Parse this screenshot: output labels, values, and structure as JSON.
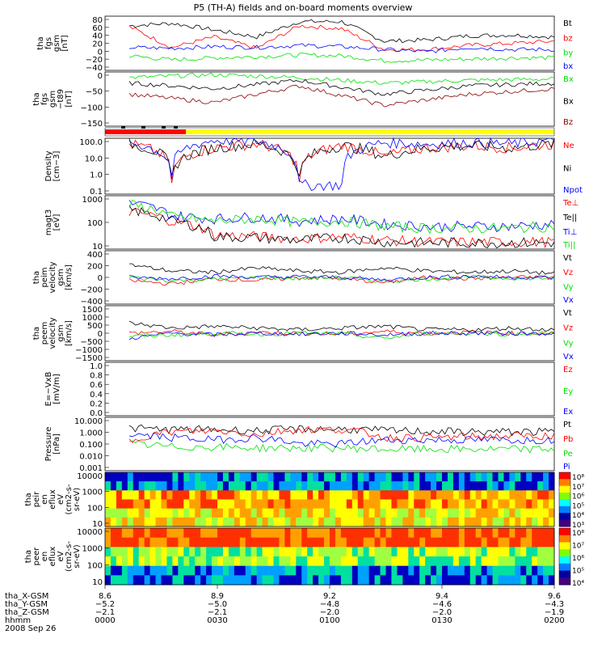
{
  "title": "P5 (TH-A) fields and on-board moments overview",
  "colors": {
    "black": "#000000",
    "red": "#ff0000",
    "green": "#00e000",
    "blue": "#0000ff",
    "yellow": "#ffff00",
    "darkred": "#8b0000"
  },
  "chart_data": [
    {
      "type": "line",
      "ylabel_lines": [
        "tha",
        "fgs",
        "gsm",
        "[nT]"
      ],
      "yticks": [
        "80",
        "60",
        "40",
        "20",
        "0",
        "−20",
        "−40"
      ],
      "ylim": [
        -45,
        85
      ],
      "series": [
        {
          "name": "Bt",
          "color": "#000000",
          "x": [
            0,
            0.1,
            0.2,
            0.3,
            0.4,
            0.5,
            0.6,
            0.7,
            0.8,
            0.9,
            1.0
          ],
          "values": [
            62,
            68,
            52,
            35,
            72,
            72,
            25,
            28,
            38,
            40,
            35
          ]
        },
        {
          "name": "bz",
          "color": "#ff0000",
          "x": [
            0,
            0.1,
            0.2,
            0.3,
            0.4,
            0.5,
            0.6,
            0.7,
            0.8,
            0.9,
            1.0
          ],
          "values": [
            60,
            10,
            35,
            8,
            62,
            55,
            5,
            5,
            15,
            20,
            25
          ]
        },
        {
          "name": "by",
          "color": "#00e000",
          "x": [
            0,
            0.1,
            0.2,
            0.3,
            0.4,
            0.5,
            0.6,
            0.7,
            0.8,
            0.9,
            1.0
          ],
          "values": [
            -10,
            -20,
            -15,
            -12,
            -8,
            -10,
            -22,
            -20,
            -18,
            -15,
            -15
          ]
        },
        {
          "name": "bx",
          "color": "#0000ff",
          "x": [
            0,
            0.1,
            0.2,
            0.3,
            0.4,
            0.5,
            0.6,
            0.7,
            0.8,
            0.9,
            1.0
          ],
          "values": [
            10,
            8,
            12,
            10,
            15,
            12,
            5,
            0,
            10,
            5,
            5
          ]
        }
      ]
    },
    {
      "type": "line",
      "ylabel_lines": [
        "tha",
        "fgs",
        "gsm",
        "−t89",
        "[nT]"
      ],
      "yticks": [
        "0",
        "−50",
        "−100",
        "−150"
      ],
      "ylim": [
        -175,
        20
      ],
      "series": [
        {
          "name": "Bx",
          "color": "#00e000",
          "x": [
            0,
            0.2,
            0.4,
            0.6,
            0.8,
            1.0
          ],
          "values": [
            0,
            10,
            0,
            -20,
            -10,
            -5
          ]
        },
        {
          "name": "Bx",
          "color": "#000000",
          "x": [
            0,
            0.2,
            0.4,
            0.6,
            0.8,
            1.0
          ],
          "values": [
            -20,
            -40,
            -10,
            -60,
            -30,
            -20
          ]
        },
        {
          "name": "Bz",
          "color": "#8b0000",
          "x": [
            0,
            0.2,
            0.4,
            0.6,
            0.8,
            1.0
          ],
          "values": [
            -60,
            -90,
            -30,
            -100,
            -60,
            -40
          ]
        }
      ]
    },
    {
      "type": "line",
      "log": true,
      "ylabel_lines": [
        "Density",
        "[cm−3]"
      ],
      "yticks": [
        "100.0",
        "10.0",
        "1.0",
        "0.1"
      ],
      "ylim": [
        0.1,
        100
      ],
      "series": [
        {
          "name": "Ne",
          "color": "#ff0000",
          "x": [
            0,
            0.1,
            0.2,
            0.3,
            0.4,
            0.5,
            0.6,
            0.7,
            0.8,
            0.9,
            1.0
          ],
          "values": [
            50,
            0.5,
            30,
            50,
            0.5,
            40,
            10,
            30,
            40,
            30,
            50
          ]
        },
        {
          "name": "Ni",
          "color": "#000000",
          "x": [
            0,
            0.1,
            0.2,
            0.3,
            0.4,
            0.5,
            0.6,
            0.7,
            0.8,
            0.9,
            1.0
          ],
          "values": [
            50,
            0.6,
            30,
            50,
            0.6,
            40,
            10,
            30,
            40,
            30,
            50
          ]
        },
        {
          "name": "Npot",
          "color": "#0000ff",
          "x": [
            0,
            0.1,
            0.2,
            0.3,
            0.4,
            0.5,
            0.6,
            0.7,
            0.8,
            0.9,
            1.0
          ],
          "values": [
            60,
            0.8,
            80,
            70,
            0.3,
            0.3,
            60,
            50,
            60,
            50,
            80
          ]
        }
      ]
    },
    {
      "type": "line",
      "log": true,
      "ylabel_lines": [
        "magt3",
        "[eV]"
      ],
      "yticks": [
        "1000",
        "100",
        "10"
      ],
      "ylim": [
        8,
        8000
      ],
      "series": [
        {
          "name": "Te⊥",
          "color": "#ff0000",
          "x": [
            0,
            0.1,
            0.2,
            0.3,
            0.4,
            0.5,
            0.6,
            0.7,
            0.8,
            0.9,
            1.0
          ],
          "values": [
            1000,
            300,
            50,
            40,
            30,
            40,
            25,
            20,
            20,
            20,
            20
          ]
        },
        {
          "name": "Te||",
          "color": "#000000",
          "x": [
            0,
            0.1,
            0.2,
            0.3,
            0.4,
            0.5,
            0.6,
            0.7,
            0.8,
            0.9,
            1.0
          ],
          "values": [
            1200,
            300,
            40,
            35,
            25,
            35,
            20,
            18,
            18,
            18,
            18
          ]
        },
        {
          "name": "Ti⊥",
          "color": "#0000ff",
          "x": [
            0,
            0.1,
            0.2,
            0.3,
            0.4,
            0.5,
            0.6,
            0.7,
            0.8,
            0.9,
            1.0
          ],
          "values": [
            3000,
            600,
            400,
            500,
            300,
            400,
            200,
            150,
            150,
            150,
            200
          ]
        },
        {
          "name": "Ti||",
          "color": "#00e000",
          "x": [
            0,
            0.1,
            0.2,
            0.3,
            0.4,
            0.5,
            0.6,
            0.7,
            0.8,
            0.9,
            1.0
          ],
          "values": [
            2500,
            500,
            300,
            400,
            250,
            300,
            150,
            120,
            120,
            120,
            150
          ]
        }
      ]
    },
    {
      "type": "line",
      "ylabel_lines": [
        "tha",
        "peim",
        "velocity",
        "gsm",
        "[km/s]"
      ],
      "yticks": [
        "400",
        "200",
        "0",
        "−200",
        "−400"
      ],
      "ylim": [
        -420,
        420
      ],
      "series": [
        {
          "name": "Vt",
          "color": "#000000",
          "x": [
            0,
            0.1,
            0.2,
            0.3,
            0.4,
            0.5,
            0.6,
            0.7,
            0.8,
            0.9,
            1.0
          ],
          "values": [
            200,
            100,
            80,
            150,
            100,
            80,
            150,
            100,
            80,
            100,
            60
          ]
        },
        {
          "name": "Vz",
          "color": "#ff0000",
          "x": [
            0,
            0.1,
            0.2,
            0.3,
            0.4,
            0.5,
            0.6,
            0.7,
            0.8,
            0.9,
            1.0
          ],
          "values": [
            -50,
            -100,
            -20,
            -50,
            0,
            -20,
            -80,
            0,
            -20,
            0,
            0
          ]
        },
        {
          "name": "Vy",
          "color": "#00e000",
          "x": [
            0,
            0.1,
            0.2,
            0.3,
            0.4,
            0.5,
            0.6,
            0.7,
            0.8,
            0.9,
            1.0
          ],
          "values": [
            0,
            -50,
            -30,
            0,
            -20,
            0,
            -60,
            -20,
            0,
            -10,
            -20
          ]
        },
        {
          "name": "Vx",
          "color": "#0000ff",
          "x": [
            0,
            0.1,
            0.2,
            0.3,
            0.4,
            0.5,
            0.6,
            0.7,
            0.8,
            0.9,
            1.0
          ],
          "values": [
            0,
            -20,
            20,
            0,
            10,
            0,
            -40,
            0,
            20,
            0,
            0
          ]
        }
      ]
    },
    {
      "type": "line",
      "ylabel_lines": [
        "tha",
        "peem",
        "velocity",
        "gsm",
        "[km/s]"
      ],
      "yticks": [
        "1500",
        "1000",
        "500",
        "0",
        "−500",
        "−1000",
        "−1500"
      ],
      "ylim": [
        -1600,
        1600
      ],
      "series": [
        {
          "name": "Vt",
          "color": "#000000",
          "x": [
            0,
            0.1,
            0.2,
            0.3,
            0.4,
            0.5,
            0.6,
            0.7,
            0.8,
            0.9,
            1.0
          ],
          "values": [
            600,
            300,
            400,
            300,
            200,
            300,
            400,
            200,
            200,
            300,
            200
          ]
        },
        {
          "name": "Vz",
          "color": "#ff0000",
          "x": [
            0,
            0.1,
            0.2,
            0.3,
            0.4,
            0.5,
            0.6,
            0.7,
            0.8,
            0.9,
            1.0
          ],
          "values": [
            0,
            100,
            -100,
            50,
            0,
            -50,
            100,
            0,
            50,
            0,
            0
          ]
        },
        {
          "name": "Vy",
          "color": "#00e000",
          "x": [
            0,
            0.1,
            0.2,
            0.3,
            0.4,
            0.5,
            0.6,
            0.7,
            0.8,
            0.9,
            1.0
          ],
          "values": [
            -200,
            -100,
            0,
            -50,
            0,
            -50,
            -300,
            0,
            0,
            -50,
            0
          ]
        },
        {
          "name": "Vx",
          "color": "#0000ff",
          "x": [
            0,
            0.1,
            0.2,
            0.3,
            0.4,
            0.5,
            0.6,
            0.7,
            0.8,
            0.9,
            1.0
          ],
          "values": [
            -300,
            0,
            -100,
            0,
            -50,
            0,
            -100,
            0,
            0,
            0,
            0
          ]
        }
      ]
    },
    {
      "type": "line",
      "ylabel_lines": [
        "E=−VxB",
        "[mV/m]"
      ],
      "yticks": [
        "1.0",
        "0.8",
        "0.6",
        "0.4",
        "0.2",
        "0.0"
      ],
      "ylim": [
        0,
        1
      ],
      "series": [
        {
          "name": "Ez",
          "color": "#ff0000",
          "x": [],
          "values": []
        },
        {
          "name": "Ey",
          "color": "#00e000",
          "x": [],
          "values": []
        },
        {
          "name": "Ex",
          "color": "#0000ff",
          "x": [],
          "values": []
        }
      ]
    },
    {
      "type": "line",
      "log": true,
      "ylabel_lines": [
        "Pressure",
        "[nPa]"
      ],
      "yticks": [
        "10.000",
        "1.000",
        "0.100",
        "0.010",
        "0.001"
      ],
      "ylim": [
        0.001,
        10
      ],
      "series": [
        {
          "name": "Pt",
          "color": "#000000",
          "x": [
            0,
            0.1,
            0.2,
            0.3,
            0.4,
            0.5,
            0.6,
            0.7,
            0.8,
            0.9,
            1.0
          ],
          "values": [
            1.5,
            1.2,
            1.2,
            1.0,
            1.3,
            1.3,
            1.0,
            0.9,
            0.8,
            0.8,
            0.8
          ]
        },
        {
          "name": "Pb",
          "color": "#ff0000",
          "x": [
            0,
            0.1,
            0.2,
            0.3,
            0.4,
            0.5,
            0.6,
            0.7,
            0.8,
            0.9,
            1.0
          ],
          "values": [
            0.15,
            0.8,
            1.0,
            0.5,
            1.2,
            1.2,
            0.3,
            0.3,
            0.35,
            0.4,
            0.4
          ]
        },
        {
          "name": "Pe",
          "color": "#00e000",
          "x": [
            0,
            0.1,
            0.2,
            0.3,
            0.4,
            0.5,
            0.6,
            0.7,
            0.8,
            0.9,
            1.0
          ],
          "values": [
            0.1,
            0.06,
            0.06,
            0.05,
            0.05,
            0.05,
            0.04,
            0.04,
            0.04,
            0.04,
            0.04
          ]
        },
        {
          "name": "Pi",
          "color": "#0000ff",
          "x": [
            0,
            0.1,
            0.2,
            0.3,
            0.4,
            0.5,
            0.6,
            0.7,
            0.8,
            0.9,
            1.0
          ],
          "values": [
            0.5,
            0.3,
            0.2,
            0.3,
            0.1,
            0.1,
            0.2,
            0.2,
            0.2,
            0.2,
            0.2
          ]
        }
      ]
    },
    {
      "type": "heatmap",
      "ylabel_lines": [
        "tha",
        "peir",
        "en",
        "eflux",
        "eV",
        "(cm2-s-",
        "sr-eV)"
      ],
      "yticks": [
        "10000",
        "1000",
        "100",
        "10"
      ],
      "colorbar_ticks": [
        "10⁸",
        "10⁷",
        "10⁶",
        "10⁵",
        "10⁴",
        "10³"
      ]
    },
    {
      "type": "heatmap",
      "ylabel_lines": [
        "tha",
        "peer",
        "en",
        "eflux",
        "eV",
        "(cm2-s-",
        "sr-eV)"
      ],
      "yticks": [
        "10000",
        "1000",
        "100",
        "10"
      ],
      "colorbar_ticks": [
        "10⁸",
        "10⁷",
        "10⁶",
        "10⁵",
        "10⁴"
      ]
    }
  ],
  "xaxis": {
    "row_labels": [
      "tha_X-GSM",
      "tha_Y-GSM",
      "tha_Z-GSM",
      "hhmm",
      "2008 Sep 26"
    ],
    "ticks": [
      {
        "values": [
          "8.6",
          "−5.2",
          "−2.1",
          "0000"
        ]
      },
      {
        "values": [
          "8.9",
          "−5.0",
          "−2.1",
          "0030"
        ]
      },
      {
        "values": [
          "9.2",
          "−4.8",
          "−2.0",
          "0100"
        ]
      },
      {
        "values": [
          "9.4",
          "−4.6",
          "−2.0",
          "0130"
        ]
      },
      {
        "values": [
          "9.6",
          "−4.3",
          "−1.9",
          "0200"
        ]
      }
    ]
  }
}
